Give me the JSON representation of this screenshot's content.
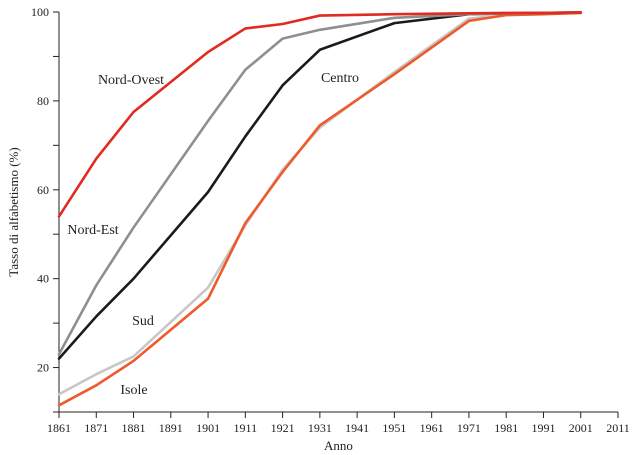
{
  "chart_data": {
    "type": "line",
    "title": "",
    "xlabel": "Anno",
    "ylabel": "Tasso di alfabetismo (%)",
    "xlim": [
      1861,
      2011
    ],
    "ylim": [
      10,
      100
    ],
    "grid": false,
    "legend": "inline",
    "x_ticks": [
      "1861",
      "1871",
      "1881",
      "1891",
      "1901",
      "1911",
      "1921",
      "1931",
      "1941",
      "1951",
      "1961",
      "1971",
      "1981",
      "1991",
      "2001",
      "2011"
    ],
    "y_ticks": [
      "20",
      "40",
      "60",
      "80",
      "100"
    ],
    "series": [
      {
        "name": "Nord-Ovest",
        "color": "#e02b20",
        "x": [
          1861,
          1871,
          1881,
          1901,
          1911,
          1921,
          1931,
          1951,
          1971,
          1981,
          1991,
          2001
        ],
        "y": [
          54,
          67,
          77.5,
          91,
          96.3,
          97.3,
          99.2,
          99.5,
          99.7,
          99.8,
          99.8,
          99.9
        ]
      },
      {
        "name": "Nord-Est",
        "color": "#8f8f8f",
        "x": [
          1861,
          1871,
          1881,
          1901,
          1911,
          1921,
          1931,
          1951,
          1971,
          1981,
          1991,
          2001
        ],
        "y": [
          23,
          38.5,
          51.5,
          75.5,
          87,
          94,
          96,
          98.7,
          99.5,
          99.7,
          99.8,
          99.9
        ]
      },
      {
        "name": "Centro",
        "color": "#1b1b1b",
        "x": [
          1861,
          1871,
          1881,
          1901,
          1911,
          1921,
          1931,
          1951,
          1971,
          1981,
          1991,
          2001
        ],
        "y": [
          22,
          31.5,
          40,
          59.5,
          72,
          83.5,
          91.5,
          97.5,
          99.5,
          99.7,
          99.8,
          99.9
        ]
      },
      {
        "name": "Sud",
        "color": "#c7c7c7",
        "x": [
          1861,
          1871,
          1881,
          1901,
          1911,
          1921,
          1931,
          1951,
          1971,
          1981,
          1991,
          2001
        ],
        "y": [
          14,
          18.5,
          22.5,
          38,
          52,
          64.5,
          74,
          86.5,
          98.5,
          99.4,
          99.6,
          99.8
        ]
      },
      {
        "name": "Isole",
        "color": "#ee5a2c",
        "x": [
          1861,
          1871,
          1881,
          1901,
          1911,
          1921,
          1931,
          1951,
          1971,
          1981,
          1991,
          2001
        ],
        "y": [
          11.5,
          16,
          21.5,
          35.5,
          52.5,
          64,
          74.5,
          86,
          98,
          99.3,
          99.5,
          99.8
        ]
      }
    ]
  }
}
